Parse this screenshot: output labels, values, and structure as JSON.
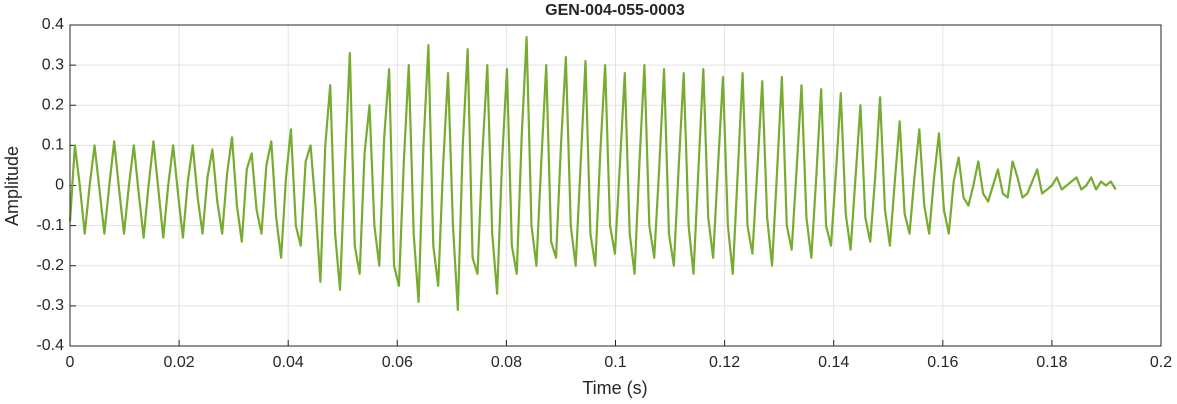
{
  "chart_data": {
    "type": "line",
    "title": "GEN-004-055-0003",
    "x_label": "Time (s)",
    "y_label": "Amplitude",
    "xlim": [
      0,
      0.2
    ],
    "xticks": [
      0,
      0.02,
      0.04,
      0.06,
      0.08,
      0.1,
      0.12,
      0.14,
      0.16,
      0.18,
      0.2
    ],
    "ylim": [
      -0.4,
      0.4
    ],
    "yticks": [
      -0.4,
      -0.3,
      -0.2,
      -0.1,
      0,
      0.1,
      0.2,
      0.3,
      0.4
    ],
    "grid": true,
    "x": [
      0,
      0.0009,
      0.0018,
      0.0027,
      0.0036,
      0.0045,
      0.0054,
      0.0063,
      0.0072,
      0.0081,
      0.009,
      0.0099,
      0.0108,
      0.0117,
      0.0126,
      0.0135,
      0.0144,
      0.0153,
      0.0162,
      0.0171,
      0.018,
      0.0189,
      0.0198,
      0.0207,
      0.0216,
      0.0225,
      0.0234,
      0.0243,
      0.0252,
      0.0261,
      0.027,
      0.0279,
      0.0288,
      0.0297,
      0.0306,
      0.0315,
      0.0324,
      0.0333,
      0.0342,
      0.0351,
      0.036,
      0.0369,
      0.0378,
      0.0387,
      0.0396,
      0.0405,
      0.0414,
      0.0423,
      0.0432,
      0.0441,
      0.045,
      0.0459,
      0.0468,
      0.0477,
      0.0486,
      0.0495,
      0.0504,
      0.0513,
      0.0522,
      0.0531,
      0.054,
      0.0549,
      0.0558,
      0.0567,
      0.0576,
      0.0585,
      0.0594,
      0.0603,
      0.0612,
      0.0621,
      0.063,
      0.0639,
      0.0648,
      0.0657,
      0.0666,
      0.0675,
      0.0684,
      0.0693,
      0.0702,
      0.0711,
      0.072,
      0.0729,
      0.0738,
      0.0747,
      0.0756,
      0.0765,
      0.0774,
      0.0783,
      0.0792,
      0.0801,
      0.081,
      0.0819,
      0.0828,
      0.0837,
      0.0846,
      0.0855,
      0.0864,
      0.0873,
      0.0882,
      0.0891,
      0.09,
      0.0909,
      0.0918,
      0.0927,
      0.0936,
      0.0945,
      0.0954,
      0.0963,
      0.0972,
      0.0981,
      0.099,
      0.0999,
      0.1008,
      0.1017,
      0.1026,
      0.1035,
      0.1044,
      0.1053,
      0.1062,
      0.1071,
      0.108,
      0.1089,
      0.1098,
      0.1107,
      0.1116,
      0.1125,
      0.1134,
      0.1143,
      0.1152,
      0.1161,
      0.117,
      0.1179,
      0.1188,
      0.1197,
      0.1206,
      0.1215,
      0.1224,
      0.1233,
      0.1242,
      0.1251,
      0.126,
      0.1269,
      0.1278,
      0.1287,
      0.1296,
      0.1305,
      0.1314,
      0.1323,
      0.1332,
      0.1341,
      0.135,
      0.1359,
      0.1368,
      0.1377,
      0.1386,
      0.1395,
      0.1404,
      0.1413,
      0.1422,
      0.1431,
      0.144,
      0.1449,
      0.1458,
      0.1467,
      0.1476,
      0.1485,
      0.1494,
      0.1503,
      0.1512,
      0.1521,
      0.153,
      0.1539,
      0.1548,
      0.1557,
      0.1566,
      0.1575,
      0.1584,
      0.1593,
      0.1602,
      0.1611,
      0.162,
      0.1629,
      0.1638,
      0.1647,
      0.1656,
      0.1665,
      0.1674,
      0.1683,
      0.1692,
      0.1701,
      0.171,
      0.1719,
      0.1728,
      0.1737,
      0.1746,
      0.1755,
      0.1764,
      0.1773,
      0.1782,
      0.1791,
      0.18,
      0.1809,
      0.1818,
      0.1827,
      0.1836,
      0.1845,
      0.1854,
      0.1863,
      0.1872,
      0.1881,
      0.189,
      0.1899,
      0.1908,
      0.1917
    ],
    "series": [
      {
        "color": "#77ac30",
        "values": [
          -0.09,
          0.1,
          0,
          -0.12,
          0,
          0.1,
          -0.01,
          -0.12,
          0,
          0.11,
          -0.01,
          -0.12,
          0,
          0.1,
          -0.02,
          -0.13,
          0,
          0.11,
          -0.01,
          -0.13,
          0,
          0.1,
          -0.02,
          -0.13,
          0.01,
          0.1,
          -0.03,
          -0.12,
          0.02,
          0.09,
          -0.04,
          -0.12,
          0.03,
          0.12,
          -0.05,
          -0.14,
          0.04,
          0.08,
          -0.06,
          -0.12,
          0.05,
          0.11,
          -0.08,
          -0.18,
          0.02,
          0.14,
          -0.1,
          -0.15,
          0.06,
          0.1,
          -0.05,
          -0.24,
          0.1,
          0.25,
          -0.12,
          -0.26,
          0.05,
          0.33,
          -0.15,
          -0.22,
          0.08,
          0.2,
          -0.1,
          -0.2,
          0.12,
          0.29,
          -0.2,
          -0.25,
          0.06,
          0.3,
          -0.12,
          -0.29,
          0.1,
          0.35,
          -0.15,
          -0.25,
          0.05,
          0.28,
          -0.1,
          -0.31,
          0.1,
          0.34,
          -0.18,
          -0.22,
          0.08,
          0.3,
          -0.12,
          -0.27,
          0.06,
          0.29,
          -0.15,
          -0.22,
          0.12,
          0.37,
          -0.1,
          -0.2,
          0.06,
          0.3,
          -0.14,
          -0.18,
          0.1,
          0.32,
          -0.1,
          -0.2,
          0.05,
          0.31,
          -0.12,
          -0.2,
          0.08,
          0.3,
          -0.1,
          -0.17,
          0.05,
          0.28,
          -0.12,
          -0.22,
          0.06,
          0.3,
          -0.1,
          -0.18,
          0.04,
          0.29,
          -0.12,
          -0.2,
          0.05,
          0.28,
          -0.1,
          -0.22,
          0.04,
          0.29,
          -0.08,
          -0.18,
          0.05,
          0.27,
          -0.1,
          -0.22,
          0.03,
          0.28,
          -0.1,
          -0.17,
          0.04,
          0.26,
          -0.08,
          -0.2,
          0.03,
          0.27,
          -0.1,
          -0.16,
          0.04,
          0.25,
          -0.08,
          -0.18,
          0.02,
          0.24,
          -0.1,
          -0.15,
          0.03,
          0.23,
          -0.07,
          -0.16,
          0.02,
          0.2,
          -0.08,
          -0.14,
          0.02,
          0.22,
          -0.06,
          -0.15,
          0.01,
          0.16,
          -0.07,
          -0.12,
          0.02,
          0.14,
          -0.05,
          -0.12,
          0.02,
          0.13,
          -0.06,
          -0.12,
          0.01,
          0.07,
          -0.03,
          -0.05,
          0,
          0.06,
          -0.02,
          -0.04,
          0,
          0.04,
          -0.02,
          -0.03,
          0.06,
          0.02,
          -0.03,
          -0.02,
          0.01,
          0.04,
          -0.02,
          -0.01,
          0,
          0.02,
          -0.01,
          0,
          0.01,
          0.02,
          -0.01,
          0,
          0.02,
          -0.01,
          0.01,
          0,
          0.01,
          -0.01
        ]
      }
    ]
  }
}
